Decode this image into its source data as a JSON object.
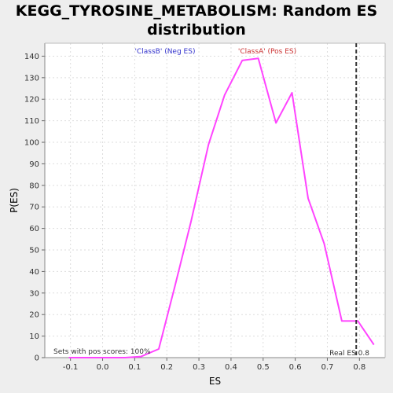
{
  "chart_data": {
    "type": "line",
    "title_line1": "KEGG_TYROSINE_METABOLISM: Random ES",
    "title_line2": "distribution",
    "xlabel": "ES",
    "ylabel": "P(ES)",
    "xlim": [
      -0.18,
      0.88
    ],
    "ylim": [
      0,
      146
    ],
    "x_ticks": [
      -0.1,
      0.0,
      0.1,
      0.2,
      0.3,
      0.4,
      0.5,
      0.6,
      0.7,
      0.8
    ],
    "x_tick_labels": [
      "-0.1",
      "0.0",
      "0.1",
      "0.2",
      "0.3",
      "0.4",
      "0.5",
      "0.6",
      "0.7",
      "0.8"
    ],
    "y_ticks": [
      0,
      10,
      20,
      30,
      40,
      50,
      60,
      70,
      80,
      90,
      100,
      110,
      120,
      130,
      140
    ],
    "grid": true,
    "line_color": "#ff44ff",
    "real_es_color": "#333333",
    "series": [
      {
        "x": [
          -0.105,
          -0.085,
          -0.035,
          0.02,
          0.07,
          0.12,
          0.175,
          0.225,
          0.275,
          0.33,
          0.38,
          0.435,
          0.485,
          0.54,
          0.59,
          0.64,
          0.69,
          0.745,
          0.795,
          0.845
        ],
        "values": [
          0,
          0,
          0,
          0,
          0,
          0.5,
          4,
          33,
          63,
          99,
          122,
          138,
          139,
          109,
          123,
          74,
          53,
          17,
          17,
          6
        ]
      }
    ],
    "real_es": 0.79,
    "annotations": {
      "classB": "'ClassB' (Neg ES)",
      "classA": "'ClassA' (Pos ES)",
      "pos_scores": "Sets with pos scores: 100%",
      "real_es_label": "Real ES 0.8"
    },
    "colors": {
      "classB": "#3333cc",
      "classA": "#cc3333"
    }
  }
}
